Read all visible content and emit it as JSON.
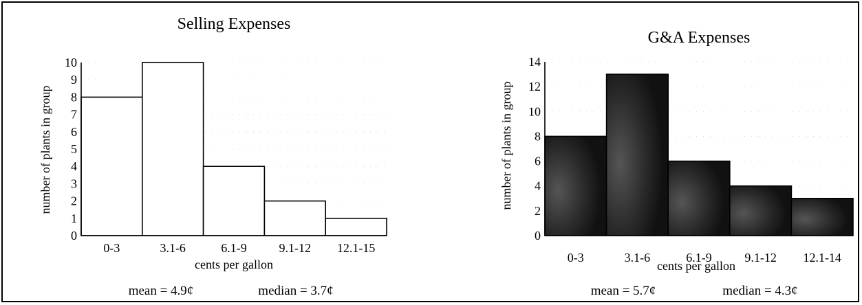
{
  "chart_data": [
    {
      "type": "bar",
      "title": "Selling Expenses",
      "xlabel": "cents per gallon",
      "ylabel": "number of plants in group",
      "categories": [
        "0-3",
        "3.1-6",
        "6.1-9",
        "9.1-12",
        "12.1-15"
      ],
      "values": [
        8,
        10,
        4,
        2,
        1
      ],
      "yticks": [
        0,
        1,
        2,
        3,
        4,
        5,
        6,
        7,
        8,
        9,
        10
      ],
      "ylim": [
        0,
        10
      ],
      "bar_color": "#ffffff",
      "stats": {
        "mean": "mean = 4.9¢",
        "median": "median = 3.7¢"
      }
    },
    {
      "type": "bar",
      "title": "G&A Expenses",
      "xlabel": "cents per gallon",
      "ylabel": "number of plants in group",
      "categories": [
        "0-3",
        "3.1-6",
        "6.1-9",
        "9.1-12",
        "12.1-14"
      ],
      "values": [
        8,
        13,
        6,
        4,
        3
      ],
      "yticks": [
        0,
        2,
        4,
        6,
        8,
        10,
        12,
        14
      ],
      "ylim": [
        0,
        14
      ],
      "bar_color": "#1e1e1e",
      "stats": {
        "mean": "mean = 5.7¢",
        "median": "median = 4.3¢"
      }
    }
  ]
}
